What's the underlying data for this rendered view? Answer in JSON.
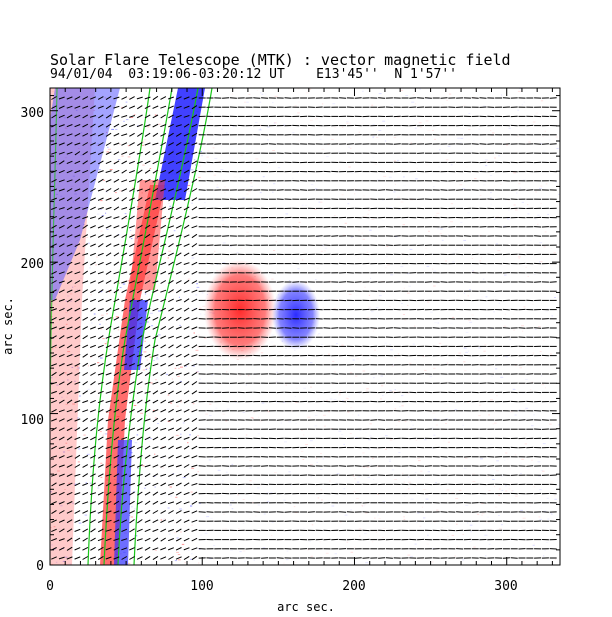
{
  "chart_data": {
    "type": "heatmap",
    "title": "Solar Flare Telescope (MTK) : vector magnetic field",
    "subtitle": "94/01/04  03:19:06-03:20:12 UT    E13'45''  N 1'57''",
    "xlabel": "arc sec.",
    "ylabel": "arc sec.",
    "xlim": [
      0,
      335
    ],
    "ylim": [
      0,
      315
    ],
    "xticks": [
      "0",
      "100",
      "200",
      "300"
    ],
    "yticks": [
      "0",
      "100",
      "200",
      "300"
    ],
    "colors": {
      "positive": "#ff3b3b",
      "negative": "#3b3bff",
      "contour": "#19c419",
      "vectors": "#000000",
      "frame": "#000000"
    },
    "positive_patch": {
      "x": [
        105,
        145
      ],
      "y": [
        140,
        195
      ]
    },
    "negative_patch": {
      "x": [
        148,
        172
      ],
      "y": [
        145,
        185
      ]
    }
  }
}
